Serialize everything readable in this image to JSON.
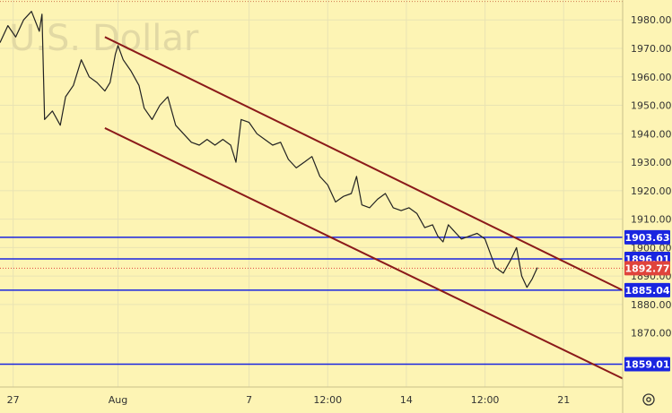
{
  "chart_data": {
    "type": "line",
    "title": "U.S. Dollar",
    "watermark": "U.S. Dollar",
    "ylim": [
      1851,
      1987
    ],
    "y_ticks": [
      1870,
      1880,
      1890,
      1900,
      1910,
      1920,
      1930,
      1940,
      1950,
      1960,
      1970,
      1980
    ],
    "x_ticks": [
      {
        "label": "27",
        "t": 0
      },
      {
        "label": "Aug",
        "t": 4
      },
      {
        "label": "7",
        "t": 9
      },
      {
        "label": "12:00",
        "t": 12
      },
      {
        "label": "14",
        "t": 15
      },
      {
        "label": "12:00",
        "t": 18
      },
      {
        "label": "21",
        "t": 21
      }
    ],
    "x_range": [
      -0.5,
      23.25
    ],
    "price_series": {
      "name": "U.S. Dollar",
      "points": [
        [
          -0.5,
          1972
        ],
        [
          -0.2,
          1978
        ],
        [
          0.1,
          1974
        ],
        [
          0.4,
          1980
        ],
        [
          0.7,
          1983
        ],
        [
          1.0,
          1976
        ],
        [
          1.1,
          1982
        ],
        [
          1.2,
          1945
        ],
        [
          1.5,
          1948
        ],
        [
          1.8,
          1943
        ],
        [
          2.0,
          1953
        ],
        [
          2.3,
          1957
        ],
        [
          2.6,
          1966
        ],
        [
          2.9,
          1960
        ],
        [
          3.2,
          1958
        ],
        [
          3.5,
          1955
        ],
        [
          3.7,
          1958
        ],
        [
          3.9,
          1968
        ],
        [
          4.0,
          1971
        ],
        [
          4.2,
          1966
        ],
        [
          4.5,
          1962
        ],
        [
          4.8,
          1957
        ],
        [
          5.0,
          1949
        ],
        [
          5.3,
          1945
        ],
        [
          5.6,
          1950
        ],
        [
          5.9,
          1953
        ],
        [
          6.2,
          1943
        ],
        [
          6.5,
          1940
        ],
        [
          6.8,
          1937
        ],
        [
          7.1,
          1936
        ],
        [
          7.4,
          1938
        ],
        [
          7.7,
          1936
        ],
        [
          8.0,
          1938
        ],
        [
          8.3,
          1936
        ],
        [
          8.5,
          1930
        ],
        [
          8.7,
          1945
        ],
        [
          9.0,
          1944
        ],
        [
          9.3,
          1940
        ],
        [
          9.6,
          1938
        ],
        [
          9.9,
          1936
        ],
        [
          10.2,
          1937
        ],
        [
          10.5,
          1931
        ],
        [
          10.8,
          1928
        ],
        [
          11.1,
          1930
        ],
        [
          11.4,
          1932
        ],
        [
          11.7,
          1925
        ],
        [
          12.0,
          1922
        ],
        [
          12.3,
          1916
        ],
        [
          12.6,
          1918
        ],
        [
          12.9,
          1919
        ],
        [
          13.1,
          1925
        ],
        [
          13.3,
          1915
        ],
        [
          13.6,
          1914
        ],
        [
          13.9,
          1917
        ],
        [
          14.2,
          1919
        ],
        [
          14.5,
          1914
        ],
        [
          14.8,
          1913
        ],
        [
          15.1,
          1914
        ],
        [
          15.4,
          1912
        ],
        [
          15.7,
          1907
        ],
        [
          16.0,
          1908
        ],
        [
          16.2,
          1904
        ],
        [
          16.4,
          1902
        ],
        [
          16.6,
          1908
        ],
        [
          16.8,
          1906
        ],
        [
          17.1,
          1903
        ],
        [
          17.4,
          1904
        ],
        [
          17.7,
          1905
        ],
        [
          18.0,
          1903
        ],
        [
          18.2,
          1898
        ],
        [
          18.4,
          1893
        ],
        [
          18.7,
          1891
        ],
        [
          19.0,
          1896
        ],
        [
          19.2,
          1900
        ],
        [
          19.4,
          1890
        ],
        [
          19.6,
          1886
        ],
        [
          19.8,
          1889
        ],
        [
          20.0,
          1893
        ]
      ]
    },
    "channel_lines": [
      {
        "name": "upper",
        "from": [
          3.5,
          1974
        ],
        "to": [
          23.25,
          1885
        ]
      },
      {
        "name": "lower",
        "from": [
          3.5,
          1942
        ],
        "to": [
          23.25,
          1854
        ]
      }
    ],
    "horizontal_levels": [
      {
        "value": 1903.63,
        "label": "1903.63",
        "color": "#1a25e0",
        "style": "solid"
      },
      {
        "value": 1896.01,
        "label": "1896.01",
        "color": "#1a25e0",
        "style": "solid"
      },
      {
        "value": 1892.77,
        "label": "1892.77",
        "color": "#e0443c",
        "style": "dotted"
      },
      {
        "value": 1885.04,
        "label": "1885.04",
        "color": "#1a25e0",
        "style": "solid"
      },
      {
        "value": 1859.01,
        "label": "1859.01",
        "color": "#1a25e0",
        "style": "solid"
      }
    ],
    "top_dotted_line": 1986.5,
    "colors": {
      "background": "#fdf4b4",
      "price": "#222222",
      "channel": "#8b1a1a",
      "level_label_bg": "#1a25e0",
      "current_label_bg": "#e0443c",
      "grid": "#e9e3b3"
    }
  },
  "ui": {
    "settings_icon": "gear-icon"
  }
}
